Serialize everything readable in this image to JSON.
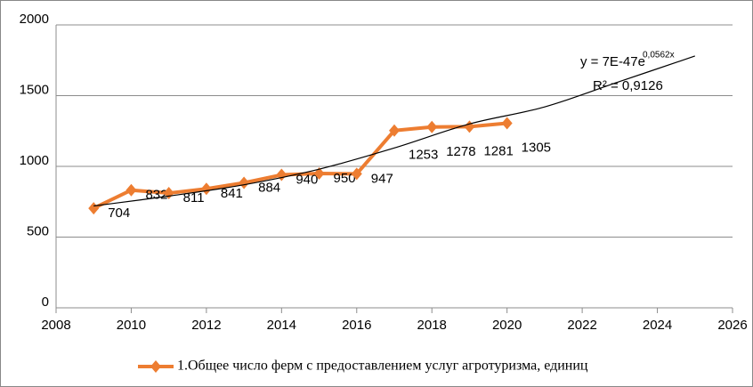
{
  "chart_data": {
    "type": "line",
    "x": [
      2009,
      2010,
      2011,
      2012,
      2013,
      2014,
      2015,
      2016,
      2017,
      2018,
      2019,
      2020
    ],
    "series": [
      {
        "name": "1.Общее число ферм с предоставлением услуг агротуризма,  единиц",
        "color": "#ed7d31",
        "values": [
          704,
          832,
          811,
          841,
          884,
          940,
          950,
          947,
          1253,
          1278,
          1281,
          1305
        ]
      }
    ],
    "trendline": {
      "color": "#000000",
      "x": [
        2009,
        2011,
        2013,
        2015,
        2017,
        2019,
        2021,
        2023,
        2025
      ],
      "values": [
        720,
        790,
        870,
        980,
        1130,
        1300,
        1420,
        1600,
        1780
      ],
      "equation": "y = 7E-47e",
      "exponent": "0,0562x",
      "r_squared": "R² = 0,9126"
    },
    "xlim": [
      2008,
      2026
    ],
    "xticks": [
      2008,
      2010,
      2012,
      2014,
      2016,
      2018,
      2020,
      2022,
      2024,
      2026
    ],
    "ylim": [
      0,
      2000
    ],
    "yticks": [
      0,
      500,
      1000,
      1500,
      2000
    ],
    "grid": true,
    "legend": "bottom"
  }
}
